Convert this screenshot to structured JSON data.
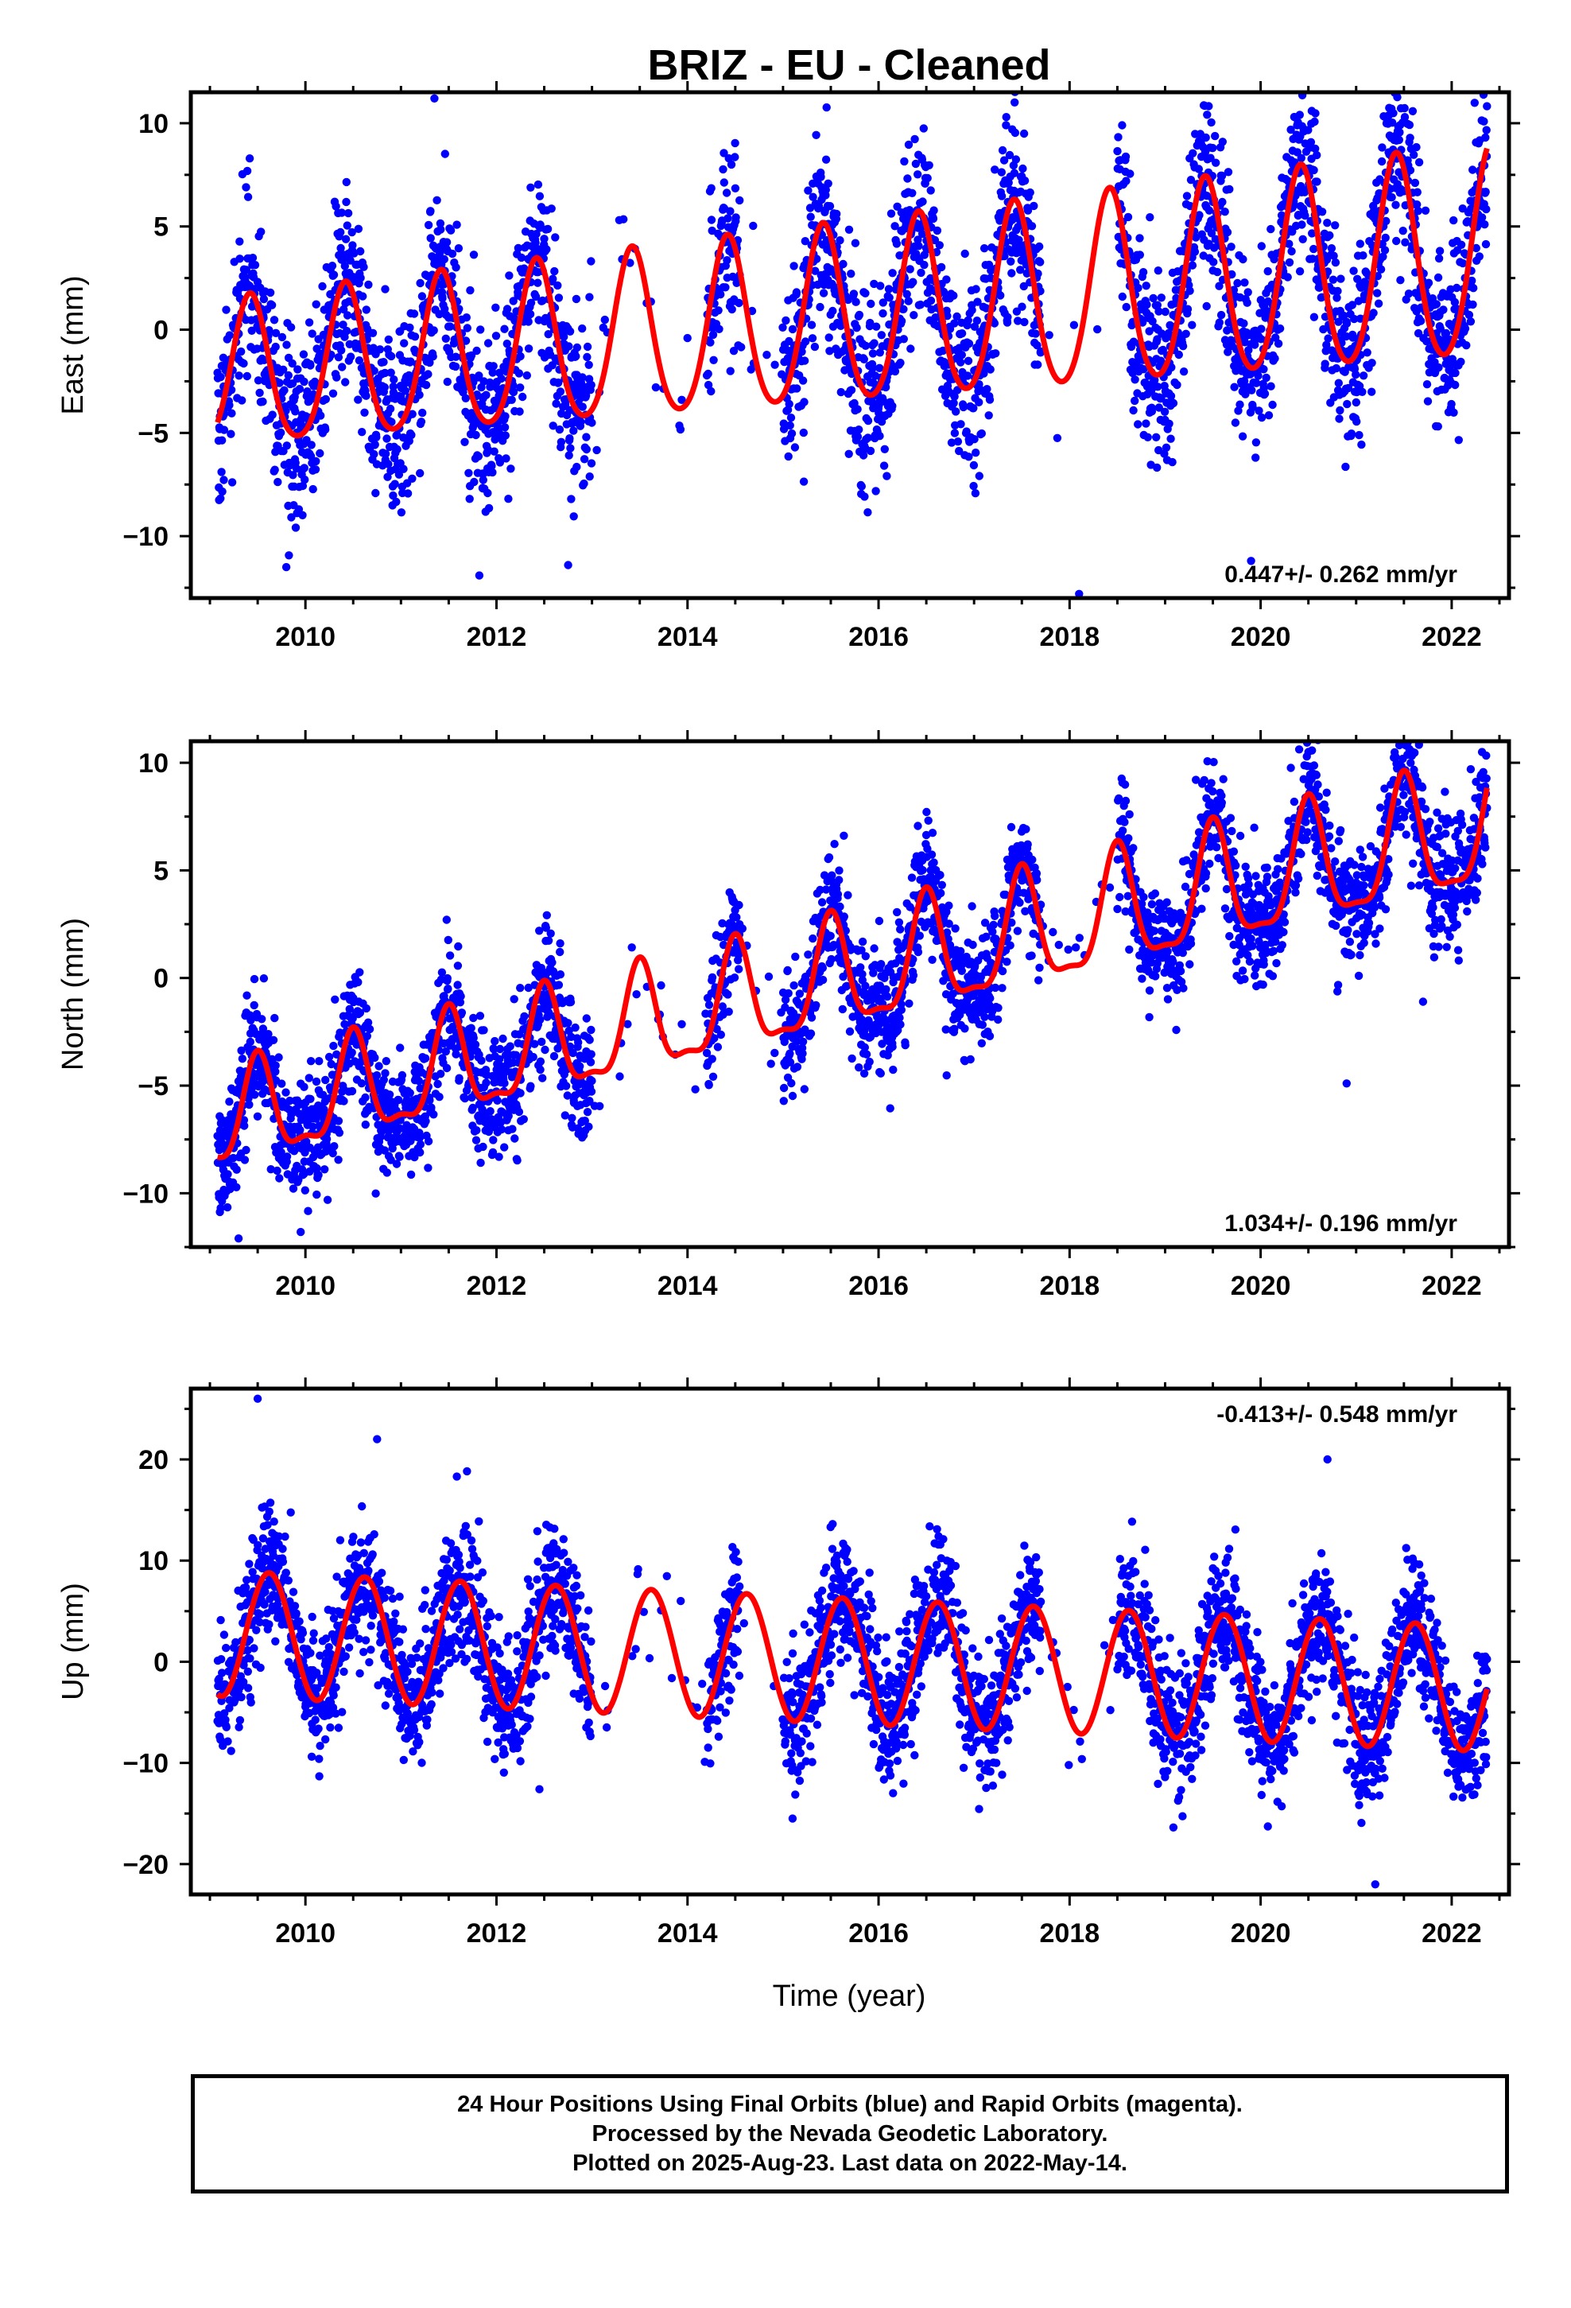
{
  "chart_data": {
    "type": "scatter",
    "title": "BRIZ  - EU - Cleaned",
    "xlabel": "Time (year)",
    "x_range": [
      2008.8,
      2022.6
    ],
    "x_ticks": [
      2010,
      2012,
      2014,
      2016,
      2018,
      2020,
      2022
    ],
    "data_span": [
      2009.08,
      2022.37
    ],
    "data_gaps": [
      [
        2013.0,
        2014.2
      ],
      [
        2014.55,
        2015.0
      ],
      [
        2017.7,
        2018.5
      ]
    ],
    "series_colors": {
      "final_orbits": "#0000ff",
      "model_fit": "#ff0000"
    },
    "panels": [
      {
        "ylabel": "East (mm)",
        "ylim": [
          -13,
          11.5
        ],
        "y_ticks": [
          -10,
          -5,
          0,
          5,
          10
        ],
        "rate_text": "0.447+/- 0.262 mm/yr",
        "model": {
          "amplitude": 3.5,
          "amp_growth": 0.12,
          "offset": -2.4,
          "trend": 0.447,
          "t0": 2009.1,
          "peak_phase": 0.42,
          "semiannual": 0.5
        },
        "noise_sd": 2.2,
        "outliers": [
          [
            2011.35,
            11.2
          ],
          [
            2017.4,
            9.7
          ],
          [
            2018.55,
            9.9
          ],
          [
            2012.75,
            -11.4
          ],
          [
            2009.8,
            -11.5
          ],
          [
            2018.1,
            -12.8
          ],
          [
            2019.9,
            -11.2
          ]
        ]
      },
      {
        "ylabel": "North (mm)",
        "ylim": [
          -12.5,
          11
        ],
        "y_ticks": [
          -10,
          -5,
          0,
          5,
          10
        ],
        "rate_text": "1.034+/- 0.196 mm/yr",
        "model": {
          "amplitude": 2.2,
          "amp_growth": 0.05,
          "offset": -6.8,
          "trend": 1.034,
          "t0": 2009.1,
          "peak_phase": 0.5,
          "semiannual": 0.8
        },
        "noise_sd": 1.4,
        "outliers": [
          [
            2020.5,
            10.5
          ],
          [
            2022.2,
            9.7
          ],
          [
            2009.3,
            -12.1
          ],
          [
            2009.95,
            -11.8
          ],
          [
            2020.9,
            -4.9
          ],
          [
            2021.7,
            -1.1
          ]
        ]
      },
      {
        "ylabel": "Up (mm)",
        "ylim": [
          -23,
          27
        ],
        "y_ticks": [
          -20,
          -10,
          0,
          10,
          20
        ],
        "rate_text": "-0.413+/- 0.548 mm/yr",
        "model": {
          "amplitude": 6.2,
          "amp_growth": 0.0,
          "offset": 2.8,
          "trend": -0.413,
          "t0": 2009.1,
          "peak_phase": 0.62,
          "semiannual": 0.0
        },
        "noise_sd": 3.3,
        "outliers": [
          [
            2009.5,
            26.0
          ],
          [
            2010.75,
            22.0
          ],
          [
            2020.7,
            20.0
          ],
          [
            2012.45,
            -12.6
          ],
          [
            2021.2,
            -22.0
          ],
          [
            2015.1,
            -15.5
          ]
        ]
      }
    ]
  },
  "footer": {
    "line1": "24 Hour Positions Using Final Orbits (blue) and Rapid Orbits (magenta).",
    "line2": "Processed by the Nevada Geodetic Laboratory.",
    "line3": "Plotted on 2025-Aug-23. Last data on 2022-May-14."
  }
}
